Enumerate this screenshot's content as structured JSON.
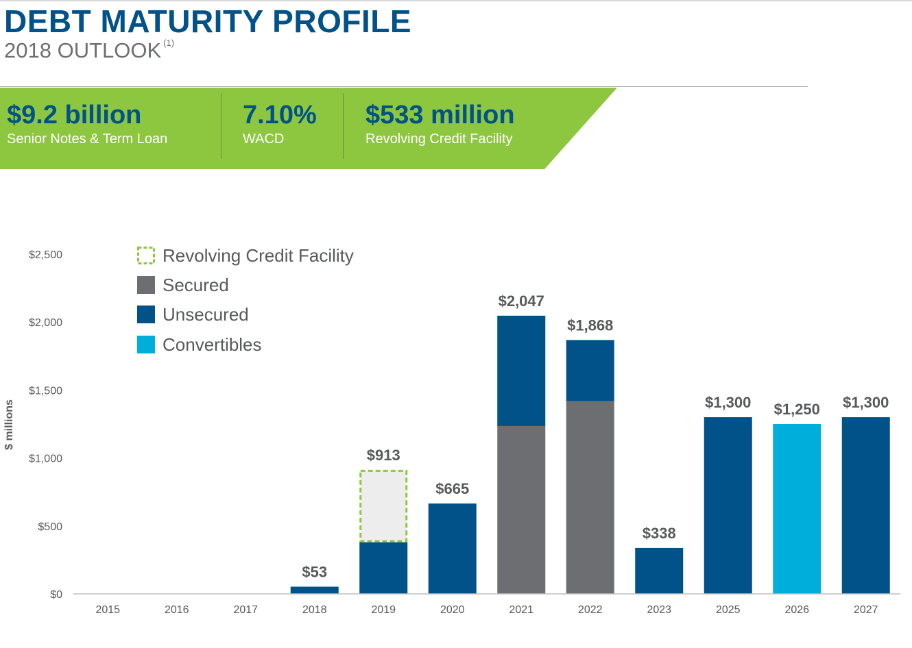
{
  "header": {
    "title": "DEBT MATURITY PROFILE",
    "subtitle": "2018 OUTLOOK",
    "footnote": "(1)"
  },
  "kpis": [
    {
      "value": "$9.2 billion",
      "label": "Senior Notes & Term Loan"
    },
    {
      "value": "7.10%",
      "label": "WACD"
    },
    {
      "value": "$533 million",
      "label": "Revolving Credit Facility"
    }
  ],
  "colors": {
    "title": "#005288",
    "banner": "#8dc63f",
    "revolving_outline": "#8dc63f",
    "revolving_fill": "#ededed",
    "secured": "#6d6e71",
    "unsecured": "#005288",
    "convertibles": "#00aedb",
    "label": "#58595b"
  },
  "chart_data": {
    "type": "bar",
    "stacked": true,
    "ylabel": "$ millions",
    "ylim": [
      0,
      2500
    ],
    "yticks": [
      0,
      500,
      1000,
      1500,
      2000,
      2500
    ],
    "ytick_labels": [
      "$0",
      "$500",
      "$1,000",
      "$1,500",
      "$2,000",
      "$2,500"
    ],
    "categories": [
      "2015",
      "2016",
      "2017",
      "2018",
      "2019",
      "2020",
      "2021",
      "2022",
      "2023",
      "2025",
      "2026",
      "2027"
    ],
    "series": [
      {
        "name": "Unsecured",
        "key": "unsecured",
        "values": [
          0,
          0,
          0,
          53,
          380,
          665,
          0,
          0,
          338,
          1300,
          0,
          1300
        ]
      },
      {
        "name": "Secured",
        "key": "secured",
        "values": [
          0,
          0,
          0,
          0,
          0,
          0,
          1235,
          1418,
          0,
          0,
          0,
          0
        ]
      },
      {
        "name": "Unsecured",
        "key": "unsecured",
        "values": [
          0,
          0,
          0,
          0,
          0,
          0,
          812,
          450,
          0,
          0,
          0,
          0
        ]
      },
      {
        "name": "Convertibles",
        "key": "convertibles",
        "values": [
          0,
          0,
          0,
          0,
          0,
          0,
          0,
          0,
          0,
          0,
          1250,
          0
        ]
      },
      {
        "name": "Revolving Credit Facility",
        "key": "revolving",
        "values": [
          0,
          0,
          0,
          0,
          533,
          0,
          0,
          0,
          0,
          0,
          0,
          0
        ]
      }
    ],
    "totals": [
      null,
      null,
      null,
      53,
      913,
      665,
      2047,
      1868,
      338,
      1300,
      1250,
      1300
    ],
    "total_labels": [
      "",
      "",
      "",
      "$53",
      "$913",
      "$665",
      "$2,047",
      "$1,868",
      "$338",
      "$1,300",
      "$1,250",
      "$1,300"
    ],
    "legend": [
      {
        "name": "Revolving Credit Facility",
        "key": "revolving"
      },
      {
        "name": "Secured",
        "key": "secured"
      },
      {
        "name": "Unsecured",
        "key": "unsecured"
      },
      {
        "name": "Convertibles",
        "key": "convertibles"
      }
    ],
    "legend_position": "top-left"
  }
}
